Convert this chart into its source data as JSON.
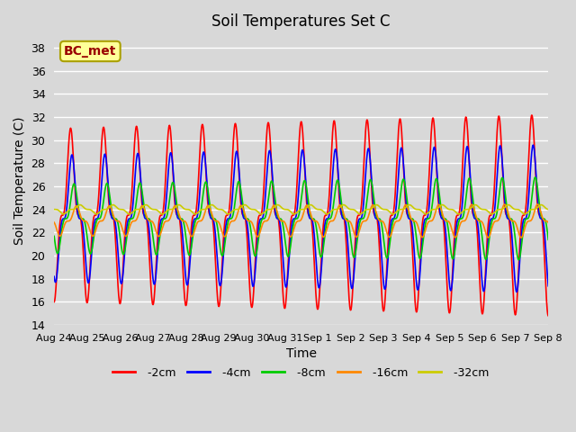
{
  "title": "Soil Temperatures Set C",
  "xlabel": "Time",
  "ylabel": "Soil Temperature (C)",
  "ylim": [
    14,
    39
  ],
  "yticks": [
    14,
    16,
    18,
    20,
    22,
    24,
    26,
    28,
    30,
    32,
    34,
    36,
    38
  ],
  "xtick_labels": [
    "Aug 24",
    "Aug 25",
    "Aug 26",
    "Aug 27",
    "Aug 28",
    "Aug 29",
    "Aug 30",
    "Aug 31",
    "Sep 1",
    "Sep 2",
    "Sep 3",
    "Sep 4",
    "Sep 5",
    "Sep 6",
    "Sep 7",
    "Sep 8"
  ],
  "series_names": [
    "-2cm",
    "-4cm",
    "-8cm",
    "-16cm",
    "-32cm"
  ],
  "series_colors": [
    "#ff0000",
    "#0000ff",
    "#00cc00",
    "#ff8800",
    "#cccc00"
  ],
  "series_amplitudes": [
    7.5,
    5.5,
    3.0,
    1.3,
    0.4
  ],
  "series_means": [
    23.5,
    23.2,
    23.2,
    23.0,
    24.0
  ],
  "series_phases": [
    0.0,
    0.25,
    0.65,
    1.1,
    1.8
  ],
  "series_amp_grow": [
    0.08,
    0.06,
    0.04,
    0.01,
    0.0
  ],
  "series_mean_grow": [
    0.0,
    0.0,
    0.0,
    0.0,
    0.0
  ],
  "annotation_text": "BC_met",
  "background_color": "#d8d8d8",
  "plot_bg_color": "#d8d8d8",
  "grid_color": "#ffffff",
  "n_days": 15,
  "points_per_day": 96,
  "waveform_power": 3
}
